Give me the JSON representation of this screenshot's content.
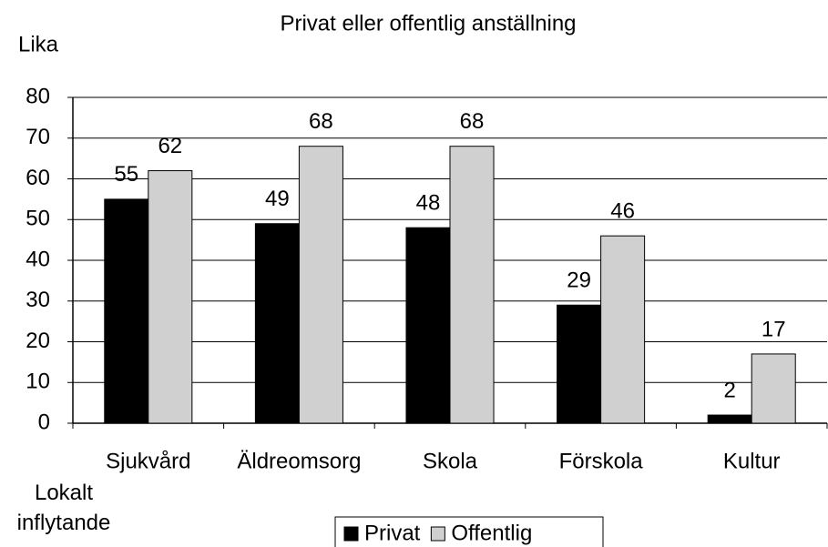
{
  "chart_data": {
    "type": "bar",
    "title": "Privat eller offentlig anställning",
    "y_label": "Lika",
    "x_label": "Lokalt inflytande",
    "categories": [
      "Sjukvård",
      "Äldreomsorg",
      "Skola",
      "Förskola",
      "Kultur"
    ],
    "series": [
      {
        "name": "Privat",
        "color": "#000000",
        "values": [
          55,
          49,
          48,
          29,
          2
        ]
      },
      {
        "name": "Offentlig",
        "color": "#d0d0d0",
        "values": [
          62,
          68,
          68,
          46,
          17
        ]
      }
    ],
    "ylim": [
      0,
      80
    ],
    "yticks": [
      0,
      10,
      20,
      30,
      40,
      50,
      60,
      70,
      80
    ],
    "grid": true,
    "legend": "bottom"
  }
}
